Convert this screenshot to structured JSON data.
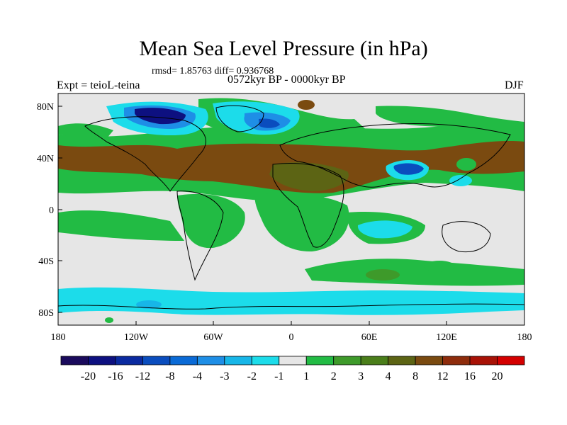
{
  "figure": {
    "title": "Mean Sea Level Pressure (in hPa)",
    "stats": "rmsd= 1.85763  diff= 0.936768",
    "experiment": "Expt = teioL-teina",
    "period": "0572kyr BP - 0000kyr BP",
    "season": "DJF"
  },
  "axes": {
    "lat_ticks": [
      "80N",
      "40N",
      "0",
      "40S",
      "80S"
    ],
    "lon_ticks": [
      "180",
      "120W",
      "60W",
      "0",
      "60E",
      "120E",
      "180"
    ]
  },
  "colorbar": {
    "labels": [
      "-20",
      "-16",
      "-12",
      "-8",
      "-4",
      "-3",
      "-2",
      "-1",
      "1",
      "2",
      "3",
      "4",
      "8",
      "12",
      "16",
      "20"
    ],
    "colors": [
      "#1a0a5c",
      "#0d1080",
      "#0a2aa0",
      "#0a4dbe",
      "#0a6ad6",
      "#1e8ee6",
      "#17b6e8",
      "#1cdcea",
      "#e6e6e6",
      "#22bb44",
      "#3e9a2a",
      "#4a7e1a",
      "#5c6414",
      "#7a4a10",
      "#8e2c0c",
      "#a81206",
      "#d40000"
    ]
  },
  "map_colors": {
    "background": "#e6e6e6",
    "green": "#22bb44",
    "green_dark": "#3e9a2a",
    "olive": "#5c6414",
    "brown": "#7a4a10",
    "cyan": "#1cdcea",
    "light_blue": "#17b6e8",
    "blue": "#1e8ee6",
    "deep_blue": "#0a4dbe",
    "navy": "#0d1080"
  }
}
